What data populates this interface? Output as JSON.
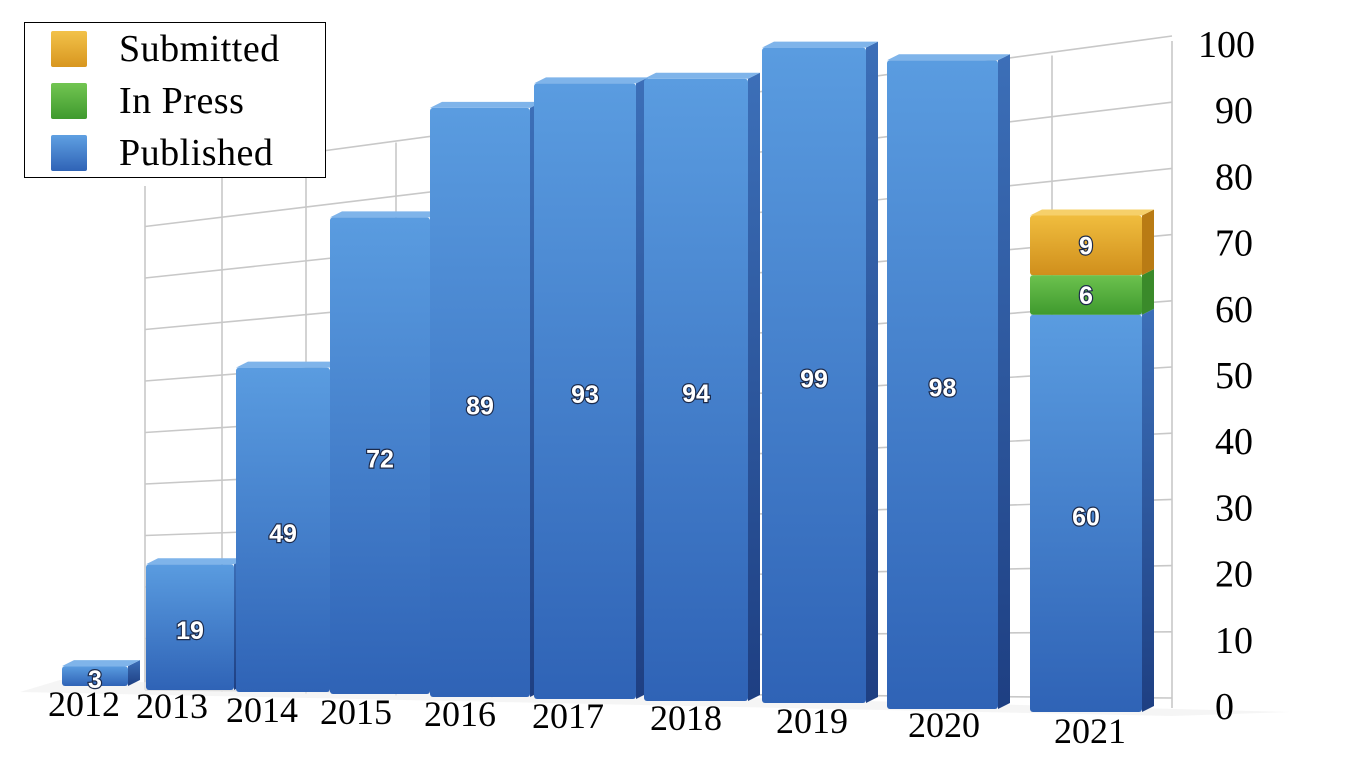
{
  "chart_data": {
    "type": "bar",
    "stacked": true,
    "categories": [
      "2012",
      "2013",
      "2014",
      "2015",
      "2016",
      "2017",
      "2018",
      "2019",
      "2020",
      "2021"
    ],
    "series": [
      {
        "name": "Published",
        "values": [
          3,
          19,
          49,
          72,
          89,
          93,
          94,
          99,
          98,
          60
        ],
        "color": "#3a7fd0"
      },
      {
        "name": "In Press",
        "values": [
          0,
          0,
          0,
          0,
          0,
          0,
          0,
          0,
          0,
          6
        ],
        "color": "#4cae3c"
      },
      {
        "name": "Submitted",
        "values": [
          0,
          0,
          0,
          0,
          0,
          0,
          0,
          0,
          0,
          9
        ],
        "color": "#e3a52a"
      }
    ],
    "data_labels": {
      "Published": [
        "3",
        "19",
        "49",
        "72",
        "89",
        "93",
        "94",
        "99",
        "98",
        "60"
      ],
      "In Press": [
        "",
        "",
        "",
        "",
        "",
        "",
        "",
        "",
        "",
        "6"
      ],
      "Submitted": [
        "",
        "",
        "",
        "",
        "",
        "",
        "",
        "",
        "",
        "9"
      ]
    },
    "yticks": [
      "0",
      "10",
      "20",
      "30",
      "40",
      "50",
      "60",
      "70",
      "80",
      "90",
      "100"
    ],
    "ylim": [
      0,
      100
    ],
    "y_axis_side": "right",
    "grid": true,
    "legend_position": "top-left",
    "style": "3d-perspective"
  },
  "legend": {
    "items": [
      {
        "label": "Submitted",
        "color": "#e3a52a"
      },
      {
        "label": "In Press",
        "color": "#4cae3c"
      },
      {
        "label": "Published",
        "color": "#3a7fd0"
      }
    ]
  }
}
